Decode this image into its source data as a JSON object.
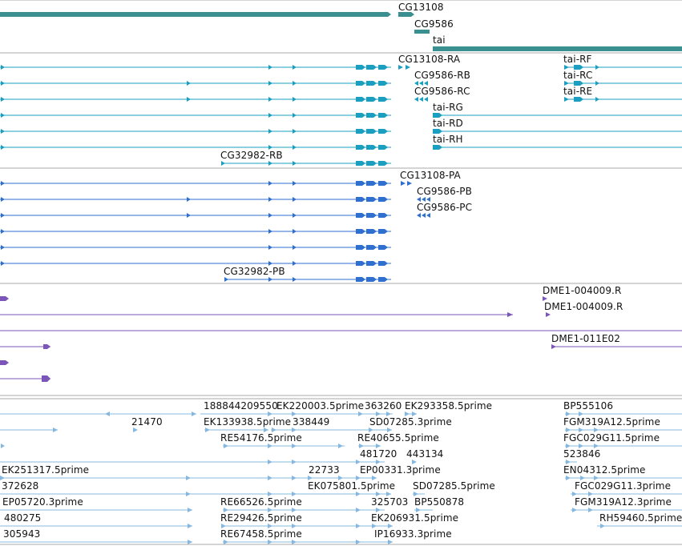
{
  "colors": {
    "gene": "#3a8f90",
    "mrna": "#1a9fc0",
    "protein": "#2f6fd0",
    "cdna": "#7b55b8",
    "est": "#85b8e0",
    "separator": "#aaaaaa"
  },
  "tracks": [
    {
      "name": "genes",
      "labels": [
        "CG13108",
        "CG9586",
        "tai"
      ]
    },
    {
      "name": "transcripts",
      "labels": [
        "CG13108-RA",
        "tai-RF",
        "CG9586-RB",
        "tai-RC",
        "CG9586-RC",
        "tai-RE",
        "tai-RG",
        "tai-RD",
        "tai-RH",
        "CG32982-RB"
      ]
    },
    {
      "name": "proteins",
      "labels": [
        "CG13108-PA",
        "CG9586-PB",
        "CG9586-PC",
        "CG32982-PB"
      ]
    },
    {
      "name": "cdna",
      "labels": [
        "DME1-004009.R",
        "DME1-004009.R",
        "DME1-011E02"
      ]
    },
    {
      "name": "ests",
      "labels": [
        "188844209550",
        "EK220003.5prime",
        "363260",
        "EK293358.5prime",
        "BP555106",
        "21470",
        "EK133938.5prime",
        "338449",
        "SD07285.3prime",
        "FGM319A12.5prime",
        "RE54176.5prime",
        "RE40655.5prime",
        "FGC029G11.5prime",
        "481720",
        "443134",
        "523846",
        "EK251317.5prime",
        "22733",
        "EP00331.3prime",
        "EN04312.5prime",
        "372628",
        "EK075801.5prime",
        "SD07285.5prime",
        "FGC029G11.3prime",
        "EP05720.3prime",
        "RE66526.5prime",
        "325703",
        "BP550878",
        "FGM319A12.3prime",
        "480275",
        "RE29426.5prime",
        "EK206931.5prime",
        "RH59460.5prime",
        "305943",
        "RE67458.5prime",
        "IP16933.3prime"
      ]
    }
  ]
}
